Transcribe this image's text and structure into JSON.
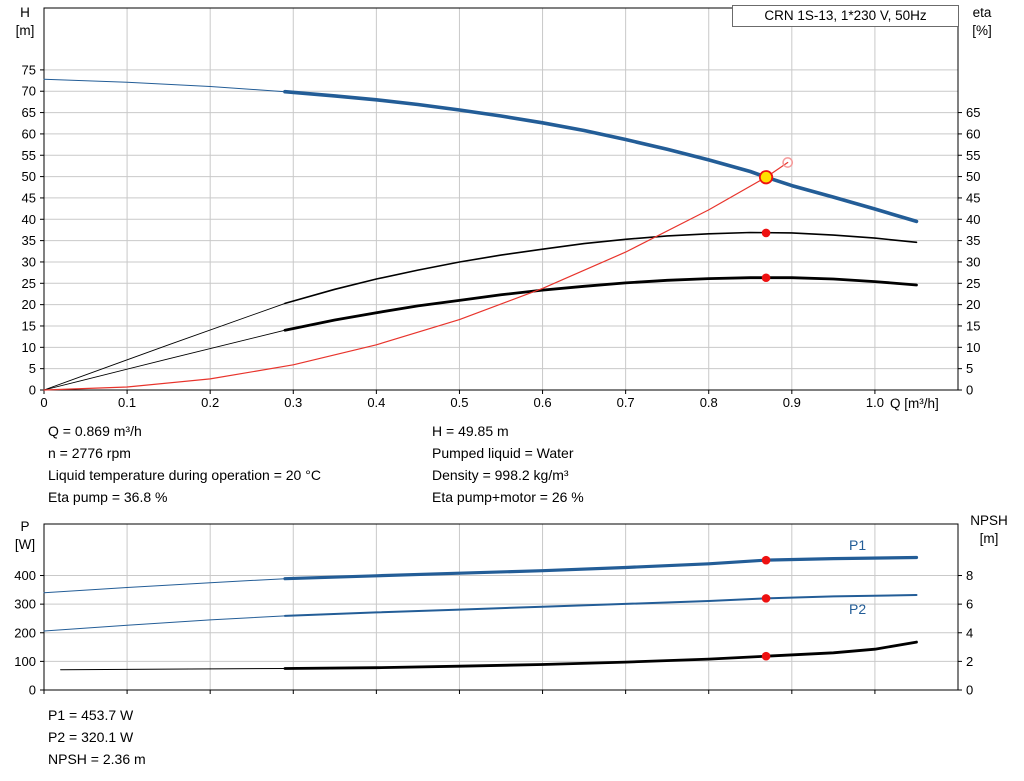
{
  "colors": {
    "blue": "#235d97",
    "black": "#000000",
    "red": "#e8342c",
    "dot_red": "#ee1111",
    "duty_yellow": "#ffe000",
    "open_ring": "#f59a9a",
    "grid": "#c9c9c9",
    "axis": "#000000"
  },
  "info": {
    "left": [
      "Q = 0.869 m³/h",
      "n = 2776 rpm",
      "Liquid temperature during operation = 20 °C",
      "Eta pump = 36.8 %"
    ],
    "right": [
      "H = 49.85 m",
      "Pumped liquid = Water",
      "Density = 998.2 kg/m³",
      "Eta pump+motor = 26 %"
    ],
    "footer": [
      "P1 = 453.7 W",
      "P2 = 320.1 W",
      "NPSH = 2.36 m"
    ]
  },
  "chart_data": [
    {
      "type": "line",
      "title": "CRN 1S-13, 1*230 V, 50Hz",
      "xlabel": "Q [m³/h]",
      "ylabel_left": [
        "H",
        "[m]"
      ],
      "ylabel_right": [
        "eta",
        "[%]"
      ],
      "xlim": [
        0,
        1.1
      ],
      "ylim_left": [
        0,
        89.5
      ],
      "ylim_right": [
        0,
        89.5
      ],
      "grid": true,
      "x_ticks": [
        0,
        0.1,
        0.2,
        0.3,
        0.4,
        0.5,
        0.6,
        0.7,
        0.8,
        0.9,
        1.0
      ],
      "x_tick_labels": [
        "0",
        "0.1",
        "0.2",
        "0.3",
        "0.4",
        "0.5",
        "0.6",
        "0.7",
        "0.8",
        "0.9",
        "1.0"
      ],
      "y_ticks_left": [
        0,
        5,
        10,
        15,
        20,
        25,
        30,
        35,
        40,
        45,
        50,
        55,
        60,
        65,
        70,
        75
      ],
      "y_ticks_right": [
        0,
        5,
        10,
        15,
        20,
        25,
        30,
        35,
        40,
        45,
        50,
        55,
        60,
        65
      ],
      "series": [
        {
          "name": "head-curve-lead",
          "color": "blue",
          "width": 1,
          "points": [
            [
              0,
              72.8
            ],
            [
              0.1,
              72.1
            ],
            [
              0.2,
              71.1
            ],
            [
              0.29,
              69.9
            ]
          ]
        },
        {
          "name": "head-curve",
          "color": "blue",
          "width": 3.6,
          "points": [
            [
              0.29,
              69.9
            ],
            [
              0.35,
              68.9
            ],
            [
              0.4,
              68.0
            ],
            [
              0.45,
              66.9
            ],
            [
              0.5,
              65.6
            ],
            [
              0.55,
              64.2
            ],
            [
              0.6,
              62.6
            ],
            [
              0.65,
              60.8
            ],
            [
              0.7,
              58.7
            ],
            [
              0.75,
              56.4
            ],
            [
              0.8,
              53.9
            ],
            [
              0.85,
              51.2
            ],
            [
              0.869,
              49.85
            ],
            [
              0.9,
              47.9
            ],
            [
              0.95,
              45.2
            ],
            [
              1.0,
              42.4
            ],
            [
              1.05,
              39.5
            ]
          ]
        },
        {
          "name": "eta-pump-lead",
          "color": "black",
          "width": 0.9,
          "points": [
            [
              0,
              0
            ],
            [
              0.15,
              10.6
            ],
            [
              0.29,
              20.3
            ]
          ]
        },
        {
          "name": "eta-pump-curve",
          "color": "black",
          "width": 1.6,
          "points": [
            [
              0.29,
              20.3
            ],
            [
              0.35,
              23.6
            ],
            [
              0.4,
              26.0
            ],
            [
              0.45,
              28.1
            ],
            [
              0.5,
              30.0
            ],
            [
              0.55,
              31.6
            ],
            [
              0.6,
              33.0
            ],
            [
              0.65,
              34.3
            ],
            [
              0.7,
              35.3
            ],
            [
              0.75,
              36.1
            ],
            [
              0.8,
              36.6
            ],
            [
              0.85,
              36.9
            ],
            [
              0.9,
              36.8
            ],
            [
              0.95,
              36.3
            ],
            [
              1.0,
              35.6
            ],
            [
              1.05,
              34.6
            ]
          ]
        },
        {
          "name": "eta-total-lead",
          "color": "black",
          "width": 0.9,
          "points": [
            [
              0,
              0
            ],
            [
              0.15,
              7.3
            ],
            [
              0.29,
              14.0
            ]
          ]
        },
        {
          "name": "eta-total-curve",
          "color": "black",
          "width": 2.8,
          "points": [
            [
              0.29,
              14.0
            ],
            [
              0.35,
              16.4
            ],
            [
              0.4,
              18.1
            ],
            [
              0.45,
              19.7
            ],
            [
              0.5,
              21.0
            ],
            [
              0.55,
              22.3
            ],
            [
              0.6,
              23.4
            ],
            [
              0.65,
              24.3
            ],
            [
              0.7,
              25.1
            ],
            [
              0.75,
              25.7
            ],
            [
              0.8,
              26.1
            ],
            [
              0.85,
              26.3
            ],
            [
              0.9,
              26.3
            ],
            [
              0.95,
              26.0
            ],
            [
              1.0,
              25.4
            ],
            [
              1.05,
              24.6
            ]
          ]
        },
        {
          "name": "system-curve",
          "color": "red",
          "width": 1.2,
          "points": [
            [
              0,
              0
            ],
            [
              0.1,
              0.7
            ],
            [
              0.2,
              2.6
            ],
            [
              0.3,
              5.9
            ],
            [
              0.4,
              10.6
            ],
            [
              0.5,
              16.5
            ],
            [
              0.6,
              23.8
            ],
            [
              0.7,
              32.3
            ],
            [
              0.8,
              42.2
            ],
            [
              0.869,
              49.85
            ],
            [
              0.895,
              53.3
            ]
          ]
        }
      ],
      "markers": [
        {
          "name": "duty-point",
          "style": "duty",
          "x": 0.869,
          "y": 49.85
        },
        {
          "name": "preview-point",
          "style": "open",
          "x": 0.895,
          "y": 53.3
        },
        {
          "name": "eta-pump-point",
          "style": "dot",
          "x": 0.869,
          "y": 36.8
        },
        {
          "name": "eta-total-point",
          "style": "dot",
          "x": 0.869,
          "y": 26.3
        }
      ]
    },
    {
      "type": "line",
      "title": "",
      "xlabel": "",
      "ylabel_left": [
        "P",
        "[W]"
      ],
      "ylabel_right": [
        "NPSH",
        "[m]"
      ],
      "xlim": [
        0,
        1.1
      ],
      "ylim_left": [
        0,
        580
      ],
      "ylim_right": [
        0,
        11.6
      ],
      "grid": true,
      "x_ticks": [
        0,
        0.1,
        0.2,
        0.3,
        0.4,
        0.5,
        0.6,
        0.7,
        0.8,
        0.9,
        1.0
      ],
      "y_ticks_left": [
        0,
        100,
        200,
        300,
        400
      ],
      "y_ticks_right": [
        0,
        2,
        4,
        6,
        8
      ],
      "series_labels": [
        "P1",
        "P2"
      ],
      "series": [
        {
          "name": "p1-lead",
          "color": "blue",
          "width": 1,
          "points": [
            [
              0,
              340
            ],
            [
              0.1,
              358
            ],
            [
              0.2,
              375
            ],
            [
              0.29,
              389
            ]
          ]
        },
        {
          "name": "p1-curve",
          "color": "blue",
          "width": 3.2,
          "points": [
            [
              0.29,
              389
            ],
            [
              0.4,
              399
            ],
            [
              0.5,
              408
            ],
            [
              0.6,
              417
            ],
            [
              0.7,
              428
            ],
            [
              0.8,
              441
            ],
            [
              0.869,
              453.7
            ],
            [
              0.95,
              459
            ],
            [
              1.05,
              463
            ]
          ]
        },
        {
          "name": "p2-lead",
          "color": "blue",
          "width": 1,
          "points": [
            [
              0,
              206
            ],
            [
              0.1,
              226
            ],
            [
              0.2,
              245
            ],
            [
              0.29,
              259
            ]
          ]
        },
        {
          "name": "p2-curve",
          "color": "blue",
          "width": 2,
          "points": [
            [
              0.29,
              259
            ],
            [
              0.4,
              271
            ],
            [
              0.5,
              281
            ],
            [
              0.6,
              291
            ],
            [
              0.7,
              301
            ],
            [
              0.8,
              311
            ],
            [
              0.869,
              320.1
            ],
            [
              0.95,
              327
            ],
            [
              1.05,
              332
            ]
          ]
        },
        {
          "name": "npsh-lead",
          "color": "black",
          "width": 1,
          "axis": "right",
          "points": [
            [
              0.02,
              1.42
            ],
            [
              0.15,
              1.46
            ],
            [
              0.29,
              1.5
            ]
          ]
        },
        {
          "name": "npsh-curve",
          "color": "black",
          "width": 2.8,
          "axis": "right",
          "points": [
            [
              0.29,
              1.5
            ],
            [
              0.4,
              1.56
            ],
            [
              0.5,
              1.66
            ],
            [
              0.6,
              1.78
            ],
            [
              0.7,
              1.95
            ],
            [
              0.8,
              2.16
            ],
            [
              0.869,
              2.36
            ],
            [
              0.95,
              2.6
            ],
            [
              1.0,
              2.85
            ],
            [
              1.05,
              3.35
            ]
          ]
        }
      ],
      "markers": [
        {
          "name": "p1-point",
          "style": "dot",
          "x": 0.869,
          "y": 453.7
        },
        {
          "name": "p2-point",
          "style": "dot",
          "x": 0.869,
          "y": 320.1
        },
        {
          "name": "npsh-point",
          "style": "dot",
          "axis": "right",
          "x": 0.869,
          "y": 2.36
        }
      ]
    }
  ]
}
